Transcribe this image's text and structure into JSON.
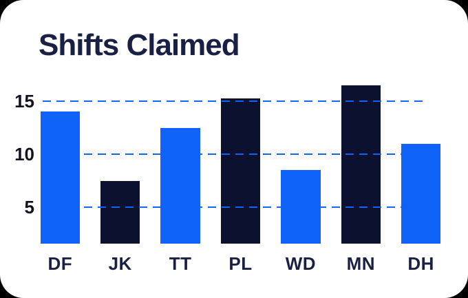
{
  "colors": {
    "page_background": "#000000",
    "card_background": "#ffffff",
    "title_text": "#1a2044",
    "tick_text": "#131320",
    "label_text": "#1a2044",
    "gridline": "#1164fa",
    "bar_blue": "#0f63f9",
    "bar_navy": "#0d1130"
  },
  "chart_data": {
    "type": "bar",
    "title": "Shifts Claimed",
    "categories": [
      "DF",
      "JK",
      "TT",
      "PL",
      "WD",
      "MN",
      "DH"
    ],
    "values": [
      14,
      7.5,
      12.5,
      15.25,
      8.5,
      16.5,
      11
    ],
    "bar_colors": [
      "blue",
      "navy",
      "blue",
      "navy",
      "blue",
      "navy",
      "blue"
    ],
    "yticks": [
      5,
      10,
      15
    ],
    "ylim": [
      1.5,
      17
    ],
    "xlabel": "",
    "ylabel": "",
    "grid": "horizontal-dashed",
    "legend": "none"
  }
}
